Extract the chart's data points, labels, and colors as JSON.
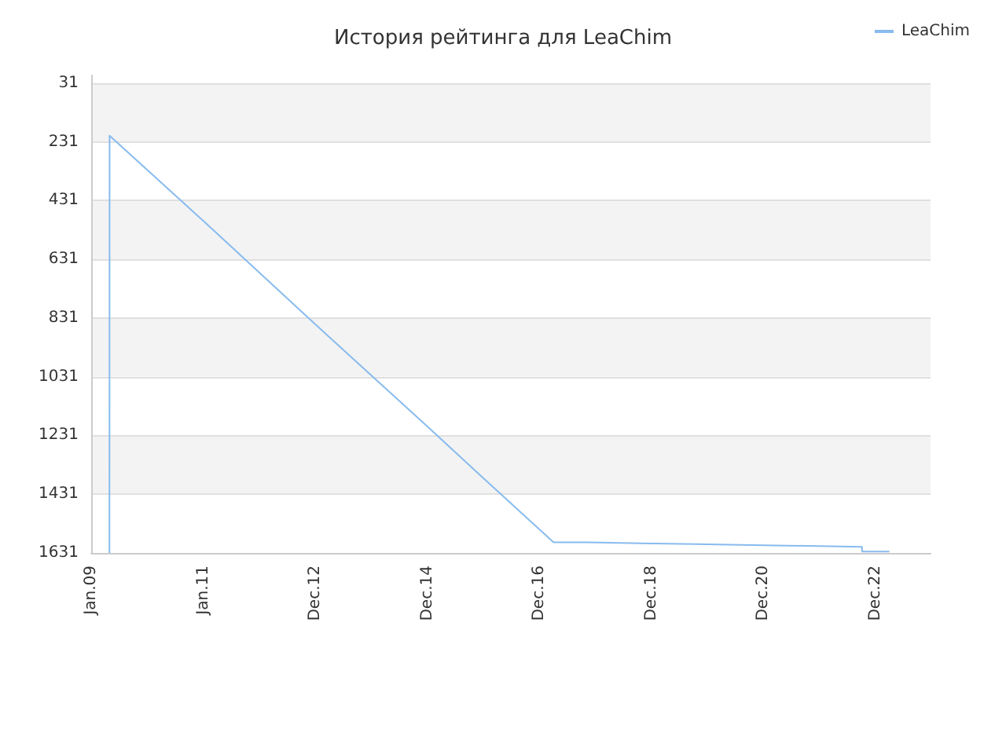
{
  "chart_data": {
    "type": "line",
    "title": "История рейтинга для LeaChim",
    "x": [
      "2009-04-30",
      "2009-05-01",
      "2011-01-01",
      "2012-12-31",
      "2014-12-31",
      "2016-01-01",
      "2017-04-03",
      "2017-10-30",
      "2017-10-31",
      "2018-10-23",
      "2018-10-24",
      "2019-10-15",
      "2019-10-16",
      "2020-10-17",
      "2020-10-18",
      "2021-10-11",
      "2021-10-12",
      "2022-10-04",
      "2022-10-05",
      "2023-04-01"
    ],
    "series": [
      {
        "name": "LeaChim",
        "color": "#88bbee",
        "values": [
          1631,
          210,
          500,
          852,
          1200,
          1376,
          1595,
          1595,
          1598,
          1598,
          1601,
          1601,
          1604,
          1604,
          1607,
          1607,
          1610,
          1610,
          1626,
          1626
        ]
      }
    ],
    "xlim": [
      "2009-01-01",
      "2023-12-25"
    ],
    "xticks": [
      {
        "value": "2009-01-01",
        "label": "Jan.09"
      },
      {
        "value": "2011-01-01",
        "label": "Jan.11"
      },
      {
        "value": "2012-12-31",
        "label": "Dec.12"
      },
      {
        "value": "2014-12-31",
        "label": "Dec.14"
      },
      {
        "value": "2016-12-30",
        "label": "Dec.16"
      },
      {
        "value": "2018-12-30",
        "label": "Dec.18"
      },
      {
        "value": "2020-12-29",
        "label": "Dec.20"
      },
      {
        "value": "2022-12-29",
        "label": "Dec.22"
      }
    ],
    "ylim": [
      1631,
      5
    ],
    "yticks": [
      31,
      231,
      431,
      631,
      831,
      1031,
      1231,
      1431,
      1631
    ],
    "grid": "y",
    "legend": "top right",
    "marker": "none",
    "line_style": "solid"
  }
}
